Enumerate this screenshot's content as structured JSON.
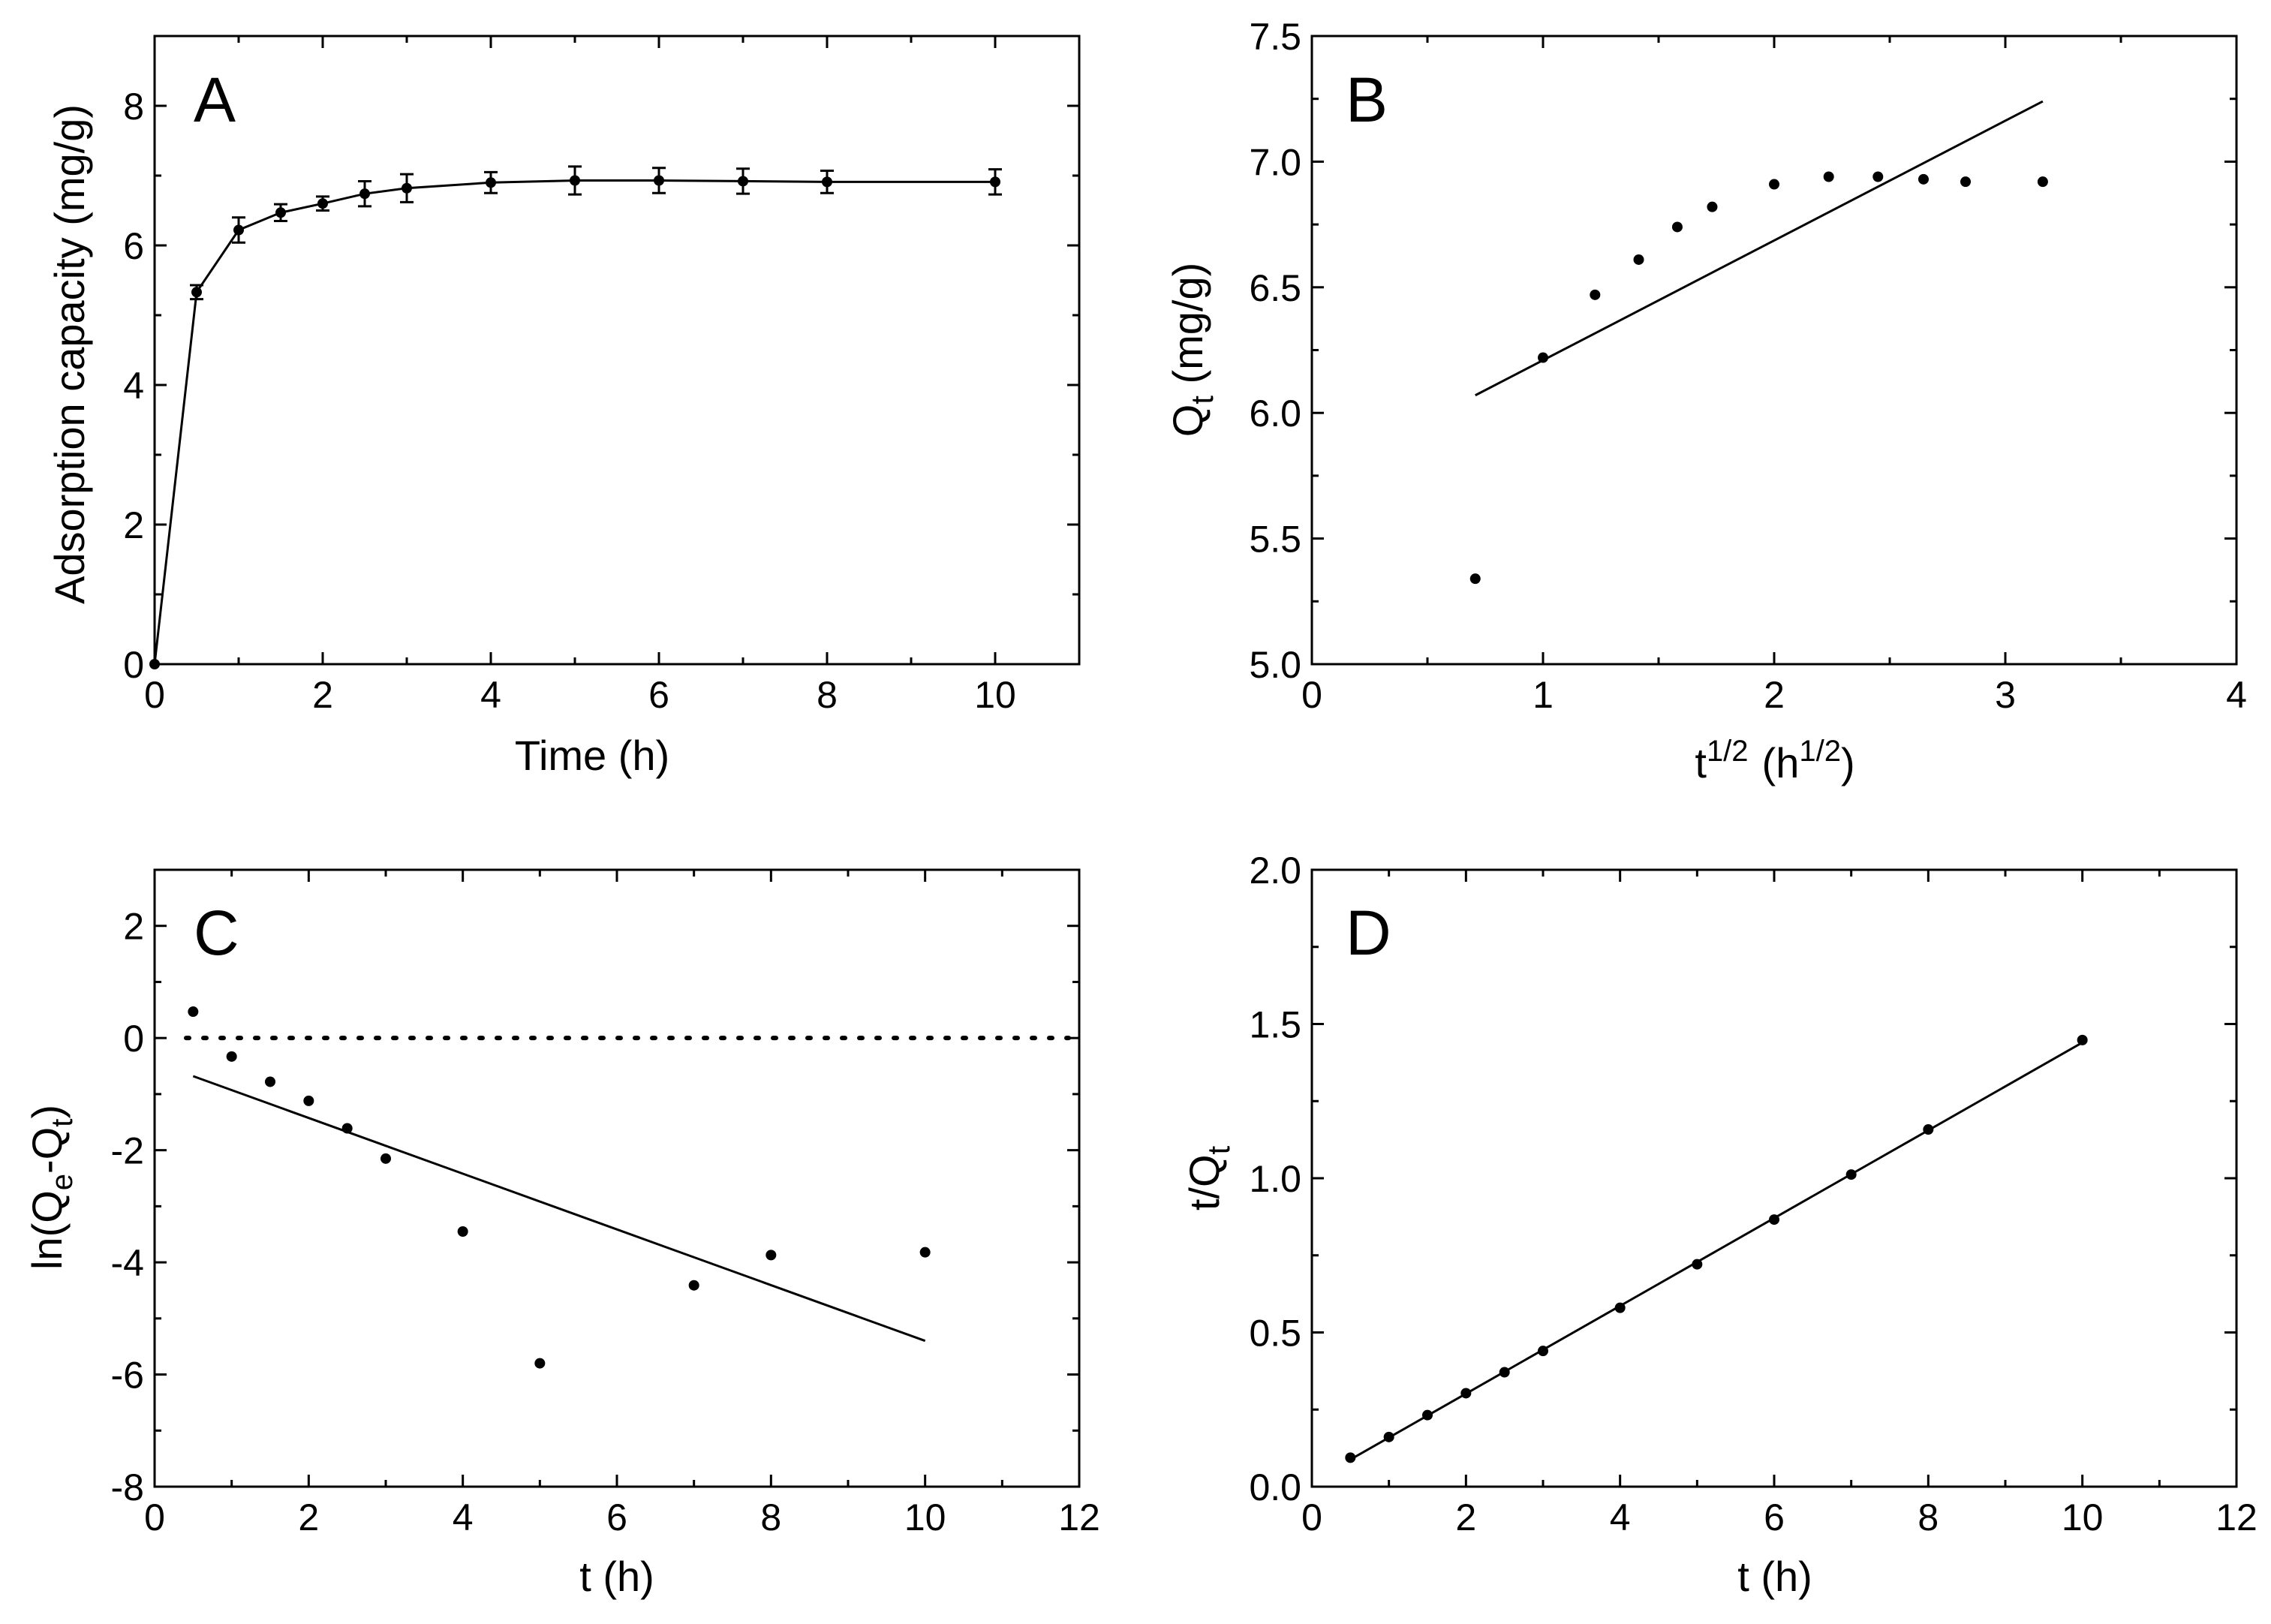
{
  "chart_data": [
    {
      "id": "A",
      "type": "line",
      "panel_label": "A",
      "title": "",
      "xlabel": "Time (h)",
      "ylabel": "Adsorption capacity (mg/g)",
      "xlim": [
        0,
        11
      ],
      "ylim": [
        0,
        9
      ],
      "xticks_major": [
        0,
        2,
        4,
        6,
        8,
        10
      ],
      "xticks_minor": [
        1,
        3,
        5,
        7,
        9
      ],
      "yticks_major": [
        0,
        2,
        4,
        6,
        8
      ],
      "yticks_minor": [
        1,
        3,
        5,
        7
      ],
      "series": [
        {
          "name": "Adsorption capacity",
          "style": "line-markers-errorbars",
          "x": [
            0,
            0.5,
            1,
            1.5,
            2,
            2.5,
            3,
            4,
            5,
            6,
            7,
            8,
            10
          ],
          "y": [
            0,
            5.33,
            6.22,
            6.47,
            6.6,
            6.74,
            6.82,
            6.9,
            6.93,
            6.93,
            6.92,
            6.91,
            6.91
          ],
          "err": [
            0,
            0.1,
            0.18,
            0.12,
            0.1,
            0.18,
            0.2,
            0.15,
            0.2,
            0.18,
            0.18,
            0.16,
            0.18
          ]
        }
      ]
    },
    {
      "id": "B",
      "type": "scatter",
      "panel_label": "B",
      "title": "",
      "xlabel": "t",
      "xlabel_sup": "1/2",
      "xlabel_unit": "(h",
      "xlabel_unit_sup": "1/2",
      "xlabel_close": ")",
      "ylabel": "Q",
      "ylabel_sub": "t",
      "ylabel_unit": " (mg/g)",
      "xlim": [
        0,
        4
      ],
      "ylim": [
        5.0,
        7.5
      ],
      "xticks_major": [
        0,
        1,
        2,
        3,
        4
      ],
      "xticks_minor": [
        0.5,
        1.5,
        2.5,
        3.5
      ],
      "yticks_major": [
        5.0,
        5.5,
        6.0,
        6.5,
        7.0,
        7.5
      ],
      "yticks_major_labels": [
        "5.0",
        "5.5",
        "6.0",
        "6.5",
        "7.0",
        "7.5"
      ],
      "yticks_minor": [
        5.25,
        5.75,
        6.25,
        6.75,
        7.25
      ],
      "series": [
        {
          "name": "data",
          "style": "markers",
          "x": [
            0.707,
            1.0,
            1.225,
            1.414,
            1.581,
            1.732,
            2.0,
            2.236,
            2.449,
            2.646,
            2.828,
            3.162
          ],
          "y": [
            5.34,
            6.22,
            6.47,
            6.61,
            6.74,
            6.82,
            6.91,
            6.94,
            6.94,
            6.93,
            6.92,
            6.92
          ]
        },
        {
          "name": "linear fit",
          "style": "line",
          "x": [
            0.707,
            3.162
          ],
          "y": [
            6.07,
            7.24
          ]
        }
      ]
    },
    {
      "id": "C",
      "type": "scatter",
      "panel_label": "C",
      "title": "",
      "xlabel": "t (h)",
      "ylabel": "ln(Q",
      "ylabel_sub1": "e",
      "ylabel_mid": "-Q",
      "ylabel_sub2": "t",
      "ylabel_close": ")",
      "xlim": [
        0,
        12
      ],
      "ylim": [
        -8,
        3
      ],
      "xticks_major": [
        0,
        2,
        4,
        6,
        8,
        10,
        12
      ],
      "xticks_minor": [
        1,
        3,
        5,
        7,
        9,
        11
      ],
      "yticks_major": [
        -8,
        -6,
        -4,
        -2,
        0,
        2
      ],
      "yticks_minor": [
        -7,
        -5,
        -3,
        -1,
        1
      ],
      "reference_line": {
        "y": 0,
        "x": [
          0,
          12
        ],
        "style": "dotted"
      },
      "series": [
        {
          "name": "data",
          "style": "markers",
          "x": [
            0.5,
            1,
            1.5,
            2,
            2.5,
            3,
            4,
            5,
            7,
            8,
            10
          ],
          "y": [
            0.47,
            -0.33,
            -0.78,
            -1.12,
            -1.61,
            -2.15,
            -3.45,
            -5.8,
            -4.41,
            -3.87,
            -3.82
          ]
        },
        {
          "name": "linear fit",
          "style": "line",
          "x": [
            0.5,
            10
          ],
          "y": [
            -0.68,
            -5.4
          ]
        }
      ]
    },
    {
      "id": "D",
      "type": "scatter",
      "panel_label": "D",
      "title": "",
      "xlabel": "t (h)",
      "ylabel": "t/Q",
      "ylabel_sub": "t",
      "xlim": [
        0,
        12
      ],
      "ylim": [
        0,
        2.0
      ],
      "xticks_major": [
        0,
        2,
        4,
        6,
        8,
        10,
        12
      ],
      "xticks_minor": [
        1,
        3,
        5,
        7,
        9,
        11
      ],
      "yticks_major": [
        0,
        0.5,
        1.0,
        1.5,
        2.0
      ],
      "yticks_major_labels": [
        "0.0",
        "0.5",
        "1.0",
        "1.5",
        "2.0"
      ],
      "yticks_minor": [
        0.25,
        0.75,
        1.25,
        1.75
      ],
      "series": [
        {
          "name": "data",
          "style": "markers",
          "x": [
            0.5,
            1,
            1.5,
            2,
            2.5,
            3,
            4,
            5,
            6,
            7,
            8,
            10
          ],
          "y": [
            0.094,
            0.161,
            0.232,
            0.303,
            0.371,
            0.44,
            0.58,
            0.721,
            0.866,
            1.012,
            1.158,
            1.448
          ]
        },
        {
          "name": "linear fit",
          "style": "line",
          "x": [
            0.5,
            10
          ],
          "y": [
            0.088,
            1.44
          ]
        }
      ]
    }
  ]
}
